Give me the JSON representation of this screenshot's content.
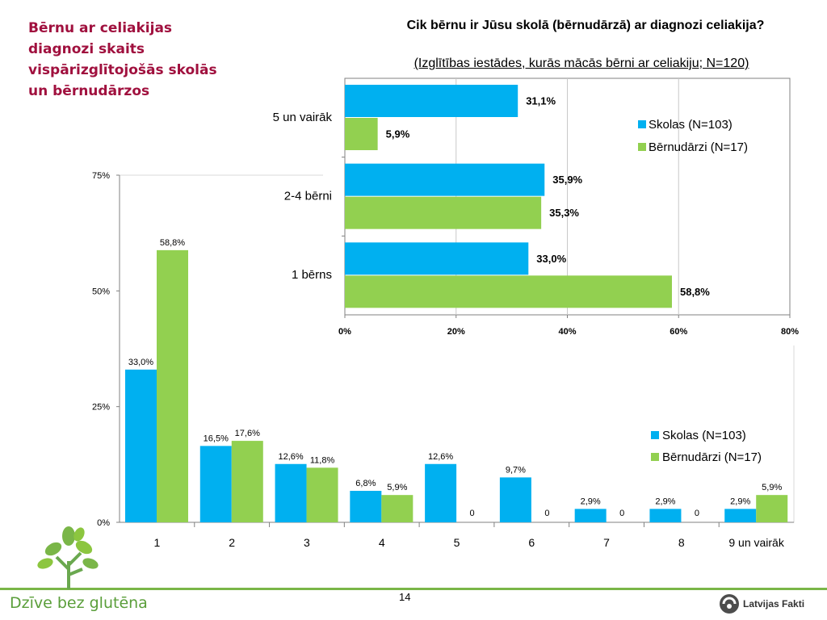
{
  "slide": {
    "title": "Bērnu ar celiakijas diagnozi skaits vispārizglītojošās skolās un bērnudārzos",
    "page_number": "14",
    "brand_text": "Dzīve bez glutēna",
    "partner_text": "Latvijas Fakti"
  },
  "colors": {
    "schools": "#00b0f0",
    "kindergartens": "#92d050",
    "title": "#a0103e",
    "brand": "#5a9e3a"
  },
  "chart_data": [
    {
      "type": "bar",
      "orientation": "vertical",
      "title": "",
      "categories": [
        "1",
        "2",
        "3",
        "4",
        "5",
        "6",
        "7",
        "8",
        "9 un vairāk"
      ],
      "series": [
        {
          "name": "Skolas (N=103)",
          "values": [
            33.0,
            16.5,
            12.6,
            6.8,
            12.6,
            9.7,
            2.9,
            2.9,
            2.9
          ],
          "labels": [
            "33,0%",
            "16,5%",
            "12,6%",
            "6,8%",
            "12,6%",
            "9,7%",
            "2,9%",
            "2,9%",
            "2,9%"
          ]
        },
        {
          "name": "Bērnudārzi (N=17)",
          "values": [
            58.8,
            17.6,
            11.8,
            5.9,
            0,
            0,
            0,
            0,
            5.9
          ],
          "labels": [
            "58,8%",
            "17,6%",
            "11,8%",
            "5,9%",
            "0",
            "0",
            "0",
            "0",
            "5,9%"
          ]
        }
      ],
      "yticks": [
        "0%",
        "25%",
        "50%",
        "75%"
      ],
      "ylim": [
        0,
        75
      ],
      "legend": "right",
      "grid": false
    },
    {
      "type": "bar",
      "orientation": "horizontal",
      "title": "Cik bērnu ir Jūsu skolā (bērnudārzā) ar diagnozi celiakija?",
      "subtitle": "(Izglītības iestādes, kurās mācās bērni ar celiakiju; N=120)",
      "categories": [
        "5 un vairāk",
        "2-4 bērni",
        "1 bērns"
      ],
      "series": [
        {
          "name": "Skolas (N=103)",
          "values": [
            31.1,
            35.9,
            33.0
          ],
          "labels": [
            "31,1%",
            "35,9%",
            "33,0%"
          ]
        },
        {
          "name": "Bērnudārzi (N=17)",
          "values": [
            5.9,
            35.3,
            58.8
          ],
          "labels": [
            "5,9%",
            "35,3%",
            "58,8%"
          ]
        }
      ],
      "xticks": [
        "0%",
        "20%",
        "40%",
        "60%",
        "80%"
      ],
      "xlim": [
        0,
        80
      ],
      "legend": "top-right",
      "grid": true
    }
  ]
}
